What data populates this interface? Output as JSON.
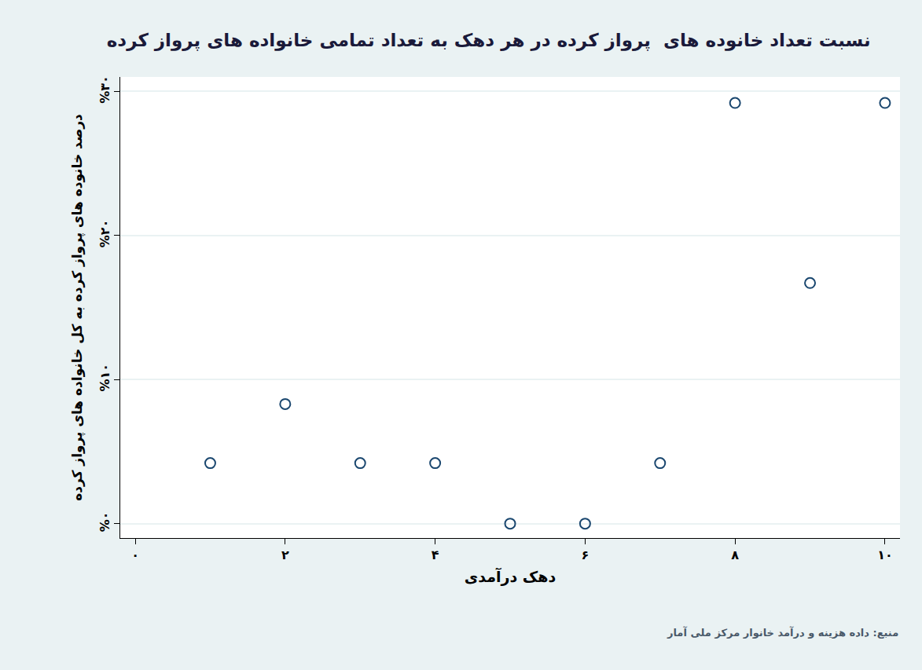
{
  "chart_data": {
    "type": "scatter",
    "title": "نسبت تعداد خانوده های  پرواز کرده در هر دهک به تعداد تمامی خانواده های پرواز کرده",
    "x_label": "دهک درآمدی",
    "y_label": "درصد خانوده های پرواز کرده به کل خانواده های پرواز کرده",
    "annotations": [
      "منبع: داده هزینه و درآمد خانوار مرکز ملی آمار"
    ],
    "x": [
      1,
      2,
      3,
      4,
      5,
      6,
      7,
      8,
      9,
      10
    ],
    "values": [
      4.2,
      8.3,
      4.2,
      4.2,
      0,
      0,
      4.2,
      29.2,
      16.7,
      29.2
    ],
    "color": "#1a476f",
    "marker": "circle-open",
    "xlim": [
      -0.2,
      10.2
    ],
    "xticks": [
      {
        "value": 0,
        "label": "۰"
      },
      {
        "value": 2,
        "label": "۲"
      },
      {
        "value": 4,
        "label": "۴"
      },
      {
        "value": 6,
        "label": "۶"
      },
      {
        "value": 8,
        "label": "۸"
      },
      {
        "value": 10,
        "label": "۱۰"
      }
    ],
    "ylim": [
      -1,
      31
    ],
    "yticks": [
      {
        "value": 0,
        "label": "%۰"
      },
      {
        "value": 10,
        "label": "%۱۰"
      },
      {
        "value": 20,
        "label": "%۲۰"
      },
      {
        "value": 30,
        "label": "%۳۰"
      }
    ],
    "grid": true
  }
}
